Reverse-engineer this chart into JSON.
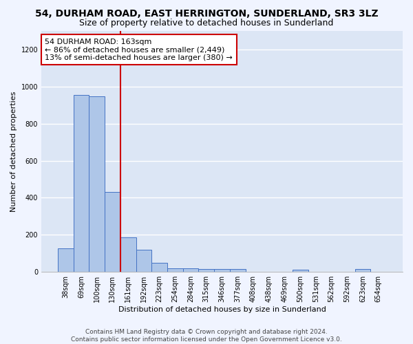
{
  "title": "54, DURHAM ROAD, EAST HERRINGTON, SUNDERLAND, SR3 3LZ",
  "subtitle": "Size of property relative to detached houses in Sunderland",
  "xlabel": "Distribution of detached houses by size in Sunderland",
  "ylabel": "Number of detached properties",
  "categories": [
    "38sqm",
    "69sqm",
    "100sqm",
    "130sqm",
    "161sqm",
    "192sqm",
    "223sqm",
    "254sqm",
    "284sqm",
    "315sqm",
    "346sqm",
    "377sqm",
    "408sqm",
    "438sqm",
    "469sqm",
    "500sqm",
    "531sqm",
    "562sqm",
    "592sqm",
    "623sqm",
    "654sqm"
  ],
  "values": [
    128,
    955,
    948,
    430,
    185,
    120,
    48,
    20,
    20,
    14,
    14,
    14,
    0,
    0,
    0,
    13,
    0,
    0,
    0,
    14,
    0
  ],
  "bar_color": "#aec6e8",
  "bar_edge_color": "#4472c4",
  "red_line_index": 4,
  "annotation_text": "54 DURHAM ROAD: 163sqm\n← 86% of detached houses are smaller (2,449)\n13% of semi-detached houses are larger (380) →",
  "annotation_box_color": "#ffffff",
  "annotation_border_color": "#cc0000",
  "ylim": [
    0,
    1300
  ],
  "yticks": [
    0,
    200,
    400,
    600,
    800,
    1000,
    1200
  ],
  "footer_line1": "Contains HM Land Registry data © Crown copyright and database right 2024.",
  "footer_line2": "Contains public sector information licensed under the Open Government Licence v3.0.",
  "background_color": "#dce6f5",
  "grid_color": "#ffffff",
  "title_fontsize": 10,
  "subtitle_fontsize": 9,
  "axis_label_fontsize": 8,
  "tick_fontsize": 7,
  "annotation_fontsize": 8,
  "footer_fontsize": 6.5
}
